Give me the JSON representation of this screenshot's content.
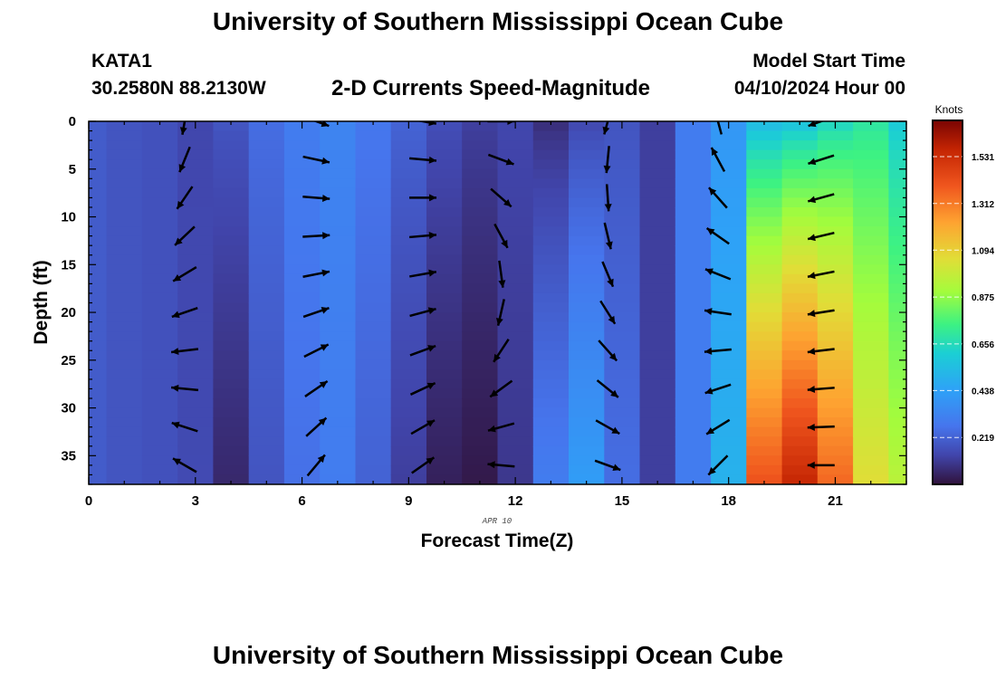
{
  "header": {
    "title": "University of Southern Mississippi Ocean Cube",
    "station_name": "KATA1",
    "station_coords": "30.2580N  88.2130W",
    "subtitle": "2-D Currents Speed-Magnitude",
    "model_start_label": "Model Start Time",
    "model_start_value": "04/10/2024 Hour 00"
  },
  "footer": {
    "title": "University of Southern Mississippi Ocean Cube"
  },
  "chart_data": {
    "type": "heatmap",
    "title": "2-D Currents Speed-Magnitude",
    "xlabel": "Forecast Time(Z)",
    "ylabel": "Depth (ft)",
    "date_label": "APR  10",
    "xlim": [
      0,
      23
    ],
    "ylim": [
      38,
      0
    ],
    "y_inverted": true,
    "x_ticks": [
      0,
      3,
      6,
      9,
      12,
      15,
      18,
      21
    ],
    "y_ticks": [
      0,
      5,
      10,
      15,
      20,
      25,
      30,
      35
    ],
    "colorbar": {
      "label": "Knots",
      "min": 0,
      "max": 1.7,
      "ticks": [
        "1.531",
        "1.312",
        "1.094",
        "0.875",
        "0.656",
        "0.438",
        "0.219"
      ],
      "tick_values": [
        1.531,
        1.312,
        1.094,
        0.875,
        0.656,
        0.438,
        0.219
      ]
    },
    "grid": false,
    "speed_profiles": [
      {
        "hour": 0,
        "surface": 0.2,
        "bottom": 0.2
      },
      {
        "hour": 1,
        "surface": 0.18,
        "bottom": 0.18
      },
      {
        "hour": 2,
        "surface": 0.17,
        "bottom": 0.17
      },
      {
        "hour": 3,
        "surface": 0.14,
        "bottom": 0.15
      },
      {
        "hour": 4,
        "surface": 0.18,
        "bottom": 0.06
      },
      {
        "hour": 5,
        "surface": 0.25,
        "bottom": 0.18
      },
      {
        "hour": 6,
        "surface": 0.3,
        "bottom": 0.26
      },
      {
        "hour": 7,
        "surface": 0.33,
        "bottom": 0.3
      },
      {
        "hour": 8,
        "surface": 0.28,
        "bottom": 0.22
      },
      {
        "hour": 9,
        "surface": 0.22,
        "bottom": 0.12
      },
      {
        "hour": 10,
        "surface": 0.16,
        "bottom": 0.04
      },
      {
        "hour": 11,
        "surface": 0.12,
        "bottom": 0.02
      },
      {
        "hour": 12,
        "surface": 0.14,
        "bottom": 0.1
      },
      {
        "hour": 13,
        "surface": 0.08,
        "bottom": 0.3
      },
      {
        "hour": 14,
        "surface": 0.15,
        "bottom": 0.42
      },
      {
        "hour": 15,
        "surface": 0.18,
        "bottom": 0.25
      },
      {
        "hour": 16,
        "surface": 0.12,
        "bottom": 0.12
      },
      {
        "hour": 17,
        "surface": 0.3,
        "bottom": 0.3
      },
      {
        "hour": 18,
        "surface": 0.4,
        "bottom": 0.5
      },
      {
        "hour": 19,
        "surface": 0.55,
        "bottom": 1.4
      },
      {
        "hour": 20,
        "surface": 0.58,
        "bottom": 1.55
      },
      {
        "hour": 21,
        "surface": 0.65,
        "bottom": 1.35
      },
      {
        "hour": 22,
        "surface": 0.7,
        "bottom": 1.05
      },
      {
        "hour": 23,
        "surface": 0.6,
        "bottom": 0.95
      }
    ],
    "vector_columns": [
      {
        "hour": 2.7,
        "dir_surface_deg": 190,
        "dir_bottom_deg": 300
      },
      {
        "hour": 6.4,
        "dir_surface_deg": 110,
        "dir_bottom_deg": 40
      },
      {
        "hour": 9.4,
        "dir_surface_deg": 100,
        "dir_bottom_deg": 55
      },
      {
        "hour": 11.6,
        "dir_surface_deg": 90,
        "dir_bottom_deg": 275
      },
      {
        "hour": 14.6,
        "dir_surface_deg": 195,
        "dir_bottom_deg": 110
      },
      {
        "hour": 17.7,
        "dir_surface_deg": 345,
        "dir_bottom_deg": 225
      },
      {
        "hour": 20.6,
        "dir_surface_deg": 250,
        "dir_bottom_deg": 270
      }
    ],
    "vector_depths": [
      0,
      4,
      8,
      12,
      16,
      20,
      24,
      28,
      32,
      36
    ]
  }
}
